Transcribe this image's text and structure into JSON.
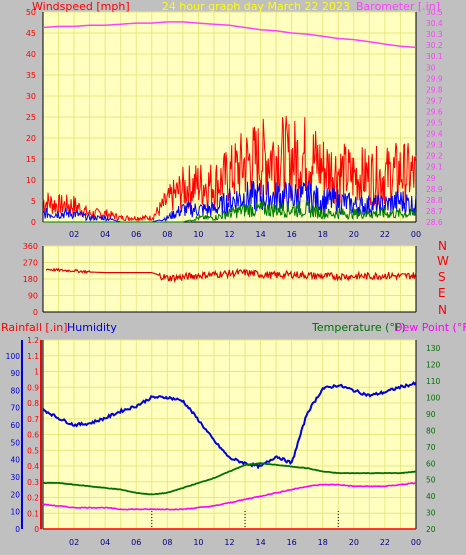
{
  "colors": {
    "background": "#c0c0c0",
    "plot_bg": "#ffffc0",
    "grid": "#e8e880",
    "wind_gust": "#ff0000",
    "wind_avg": "#0000ff",
    "wind_low": "#008000",
    "barometer": "#ff40ff",
    "direction": "#e00000",
    "humidity": "#0000dd",
    "temperature": "#007000",
    "dew_point": "#ff00ff",
    "rain": "#ff0000",
    "title": "#ffff00"
  },
  "header": {
    "left_label": "Windspeed [mph]",
    "title": "24 hour graph day   March 22 2023",
    "right_label": "Barometer [.in]"
  },
  "lower_header": {
    "rainfall_label": "Rainfall [.in]",
    "humidity_label": "Humidity",
    "temperature_label": "Temperature (°F)",
    "dewpoint_label": "Dew Point (°F)"
  },
  "compass": [
    "N",
    "W",
    "S",
    "E",
    "N"
  ],
  "chart_data": [
    {
      "type": "line",
      "title": "24 hour graph day   March 22 2023",
      "ylabel": "Windspeed [mph]",
      "y2label": "Barometer [.in]",
      "x_ticks": [
        "02",
        "04",
        "06",
        "08",
        "10",
        "12",
        "14",
        "16",
        "18",
        "20",
        "22",
        "00"
      ],
      "ylim": [
        0,
        50
      ],
      "y_ticks": [
        "0",
        "5",
        "10",
        "15",
        "20",
        "25",
        "30",
        "35",
        "40",
        "45",
        "50"
      ],
      "y2lim": [
        28.6,
        30.5
      ],
      "y2_ticks": [
        "28.6",
        "28.7",
        "28.8",
        "28.9",
        "29",
        "29.1",
        "29.2",
        "29.3",
        "29.4",
        "29.5",
        "29.6",
        "29.7",
        "29.8",
        "29.9",
        "30",
        "30.1",
        "30.2",
        "30.3",
        "30.4",
        "30.5"
      ],
      "x_hours": [
        0,
        1,
        2,
        3,
        4,
        5,
        6,
        7,
        8,
        9,
        10,
        11,
        12,
        13,
        14,
        15,
        16,
        17,
        18,
        19,
        20,
        21,
        22,
        23,
        24
      ],
      "series": [
        {
          "axis": "left",
          "values": [
            5,
            4,
            4,
            2,
            2,
            1,
            1,
            1,
            5,
            8,
            9,
            9,
            11,
            14,
            15,
            16,
            15,
            16,
            13,
            12,
            11,
            11,
            11,
            12,
            11
          ]
        },
        {
          "axis": "left",
          "values": [
            2,
            2,
            2,
            1,
            1,
            0,
            0,
            0,
            1,
            3,
            3,
            3,
            5,
            6,
            6,
            6,
            6,
            6,
            5,
            5,
            4,
            4,
            4,
            5,
            4
          ]
        },
        {
          "axis": "left",
          "values": [
            0,
            0,
            0,
            0,
            0,
            0,
            0,
            0,
            0,
            0,
            1,
            1,
            2,
            3,
            3,
            3,
            3,
            3,
            2,
            2,
            2,
            2,
            2,
            2,
            2
          ]
        },
        {
          "axis": "right",
          "values": [
            30.36,
            30.37,
            30.37,
            30.38,
            30.38,
            30.39,
            30.4,
            30.4,
            30.41,
            30.41,
            30.4,
            30.39,
            30.38,
            30.36,
            30.34,
            30.33,
            30.31,
            30.3,
            30.28,
            30.26,
            30.25,
            30.23,
            30.21,
            30.19,
            30.18
          ]
        }
      ]
    },
    {
      "type": "line",
      "ylim": [
        0,
        360
      ],
      "y_ticks": [
        "0",
        "90",
        "180",
        "270",
        "360"
      ],
      "x_hours": [
        0,
        1,
        2,
        3,
        4,
        5,
        6,
        7,
        8,
        9,
        10,
        11,
        12,
        13,
        14,
        15,
        16,
        17,
        18,
        19,
        20,
        21,
        22,
        23,
        24
      ],
      "series": [
        {
          "values": [
            235,
            228,
            225,
            218,
            215,
            215,
            215,
            215,
            185,
            190,
            200,
            205,
            210,
            215,
            205,
            200,
            205,
            200,
            195,
            195,
            195,
            195,
            200,
            195,
            200
          ]
        }
      ]
    },
    {
      "type": "line",
      "ylabel": "Rainfall [.in]",
      "ylim": [
        0,
        1.2
      ],
      "y_ticks": [
        "0",
        "0.1",
        "0.2",
        "0.3",
        "0.4",
        "0.5",
        "0.6",
        "0.7",
        "0.8",
        "0.9",
        "1",
        "1.1",
        "1.2"
      ],
      "humidity_ticks": [
        "0",
        "10",
        "20",
        "30",
        "40",
        "50",
        "60",
        "70",
        "80",
        "90",
        "100"
      ],
      "y2label": "Temperature (°F)",
      "y2lim": [
        20,
        135
      ],
      "y2_ticks": [
        "20",
        "30",
        "40",
        "50",
        "60",
        "70",
        "80",
        "90",
        "100",
        "110",
        "120",
        "130"
      ],
      "x_ticks": [
        "02",
        "04",
        "06",
        "08",
        "10",
        "12",
        "14",
        "16",
        "18",
        "20",
        "22",
        "00"
      ],
      "x_hours": [
        0,
        1,
        2,
        3,
        4,
        5,
        6,
        7,
        8,
        9,
        10,
        11,
        12,
        13,
        14,
        15,
        16,
        17,
        18,
        19,
        20,
        21,
        22,
        23,
        24
      ],
      "series": [
        {
          "name": "Humidity",
          "axis": "humidity",
          "values": [
            69,
            64,
            60,
            61,
            64,
            68,
            71,
            76,
            76,
            74,
            63,
            51,
            41,
            38,
            36,
            42,
            38,
            67,
            81,
            83,
            80,
            77,
            79,
            82,
            84
          ]
        },
        {
          "name": "Temperature (°F)",
          "axis": "right",
          "values": [
            48,
            48,
            47,
            46,
            45,
            44,
            42,
            41,
            42,
            45,
            48,
            51,
            55,
            59,
            60,
            59,
            58,
            57,
            55,
            54,
            54,
            54,
            54,
            54,
            55
          ]
        },
        {
          "name": "Dew Point (°F)",
          "axis": "right",
          "values": [
            35,
            34,
            33,
            33,
            33,
            32,
            32,
            32,
            32,
            32,
            33,
            34,
            36,
            38,
            40,
            42,
            44,
            46,
            47,
            47,
            46,
            46,
            46,
            47,
            48
          ]
        },
        {
          "name": "Rainfall [.in]",
          "axis": "left",
          "values": [
            0,
            0,
            0,
            0,
            0,
            0,
            0,
            0,
            0,
            0,
            0,
            0,
            0,
            0,
            0,
            0,
            0,
            0,
            0,
            0,
            0,
            0,
            0,
            0,
            0
          ]
        }
      ]
    }
  ]
}
